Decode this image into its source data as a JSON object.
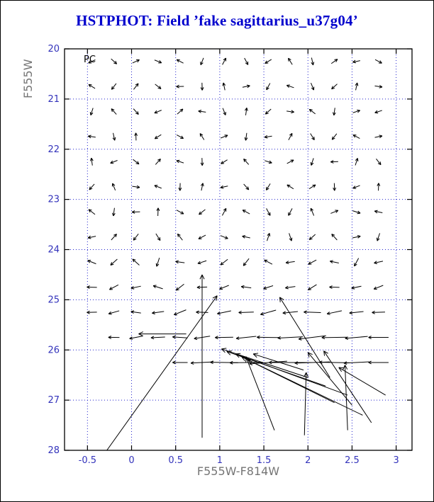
{
  "title": {
    "text": "HSTPHOT: Field ’fake sagittarius_u37g04’",
    "color": "#0000cd"
  },
  "chart_data": {
    "type": "quiver",
    "title": "HSTPHOT: Field ’fake sagittarius_u37g04’",
    "panel_label": "PC",
    "xlabel": "F555W-F814W",
    "ylabel": "F555W",
    "xlim": [
      -0.76,
      3.18
    ],
    "ylim": [
      28,
      20
    ],
    "x_tick_values": [
      -0.5,
      0,
      0.5,
      1,
      1.5,
      2,
      2.5,
      3
    ],
    "x_tick_labels": [
      "-0.5",
      "0",
      "0.5",
      "1",
      "1.5",
      "2",
      "2.5",
      "3"
    ],
    "y_tick_values": [
      20,
      21,
      22,
      23,
      24,
      25,
      26,
      27,
      28
    ],
    "y_tick_labels": [
      "20",
      "21",
      "22",
      "23",
      "24",
      "25",
      "26",
      "27",
      "28"
    ],
    "grid": true,
    "axis_color": "#000000",
    "grid_color": "#2222cc",
    "tick_label_color": "#3333bb",
    "axis_title_color": "#757575",
    "arrow_color": "#000000",
    "small_arrows": {
      "x_start": -0.45,
      "x_step": 0.25,
      "rows": [
        {
          "y": 20.25,
          "len": 0.15,
          "angles": [
            205,
            318,
            25,
            338,
            152,
            248,
            62,
            298,
            212,
            122,
            282,
            35,
            192,
            332
          ]
        },
        {
          "y": 20.75,
          "len": 0.15,
          "angles": [
            148,
            232,
            52,
            322,
            182,
            272,
            102,
            12,
            242,
            162,
            292,
            222,
            78,
            352
          ]
        },
        {
          "y": 21.25,
          "len": 0.15,
          "angles": [
            252,
            132,
            312,
            202,
            42,
            172,
            292,
            82,
            222,
            352,
            142,
            262,
            18,
            198
          ]
        },
        {
          "y": 21.75,
          "len": 0.15,
          "angles": [
            172,
            282,
            92,
            212,
            332,
            122,
            22,
            262,
            188,
            62,
            302,
            232,
            152,
            12
          ]
        },
        {
          "y": 22.25,
          "len": 0.15,
          "angles": [
            98,
            202,
            322,
            48,
            162,
            272,
            212,
            132,
            342,
            28,
            252,
            182,
            72,
            308
          ]
        },
        {
          "y": 22.75,
          "len": 0.15,
          "angles": [
            228,
            112,
            352,
            158,
            268,
            78,
            192,
            312,
            238,
            148,
            32,
            272,
            202,
            88
          ]
        },
        {
          "y": 23.25,
          "len": 0.16,
          "angles": [
            142,
            262,
            182,
            88,
            332,
            218,
            62,
            152,
            298,
            242,
            112,
            22,
            342,
            168
          ]
        },
        {
          "y": 23.75,
          "len": 0.16,
          "angles": [
            192,
            48,
            232,
            302,
            128,
            208,
            338,
            168,
            72,
            288,
            222,
            132,
            12,
            252
          ]
        },
        {
          "y": 24.25,
          "len": 0.18,
          "angles": [
            158,
            222,
            138,
            252,
            172,
            198,
            218,
            232,
            152,
            188,
            208,
            168,
            242,
            192
          ]
        },
        {
          "y": 24.75,
          "len": 0.2,
          "angles": [
            178,
            208,
            192,
            162,
            218,
            182,
            202,
            172,
            198,
            188,
            212,
            178,
            192,
            202
          ]
        },
        {
          "y": 25.25,
          "len": 0.26,
          "angles": [
            182,
            196,
            172,
            188,
            202,
            178,
            192,
            182,
            196,
            186,
            178,
            192,
            186,
            182
          ],
          "lens": [
            0.2,
            0.22,
            0.2,
            0.24,
            0.26,
            0.24,
            0.28,
            0.3,
            0.32,
            0.3,
            0.34,
            0.3,
            0.28,
            0.26
          ]
        },
        {
          "y": 25.75,
          "len": 0.35,
          "angles": [
            186,
            179,
            191,
            183,
            176,
            189,
            181,
            186,
            179,
            183,
            187,
            181,
            185,
            180
          ],
          "lens": [
            0,
            0.22,
            0.26,
            0.28,
            0.3,
            0.32,
            0.36,
            0.4,
            0.45,
            0.5,
            0.55,
            0.5,
            0.45,
            0.4
          ]
        },
        {
          "y": 26.25,
          "len": 0.5,
          "angles": [
            180,
            184,
            178,
            182,
            180,
            183,
            179,
            181,
            184,
            180,
            182,
            179,
            183,
            180
          ],
          "lens": [
            0,
            0,
            0,
            0,
            0.3,
            0.45,
            0.55,
            0.65,
            0.75,
            0.85,
            0.7,
            0.6,
            0.5,
            0.4
          ]
        }
      ]
    },
    "long_arrows": [
      [
        0.8,
        27.75,
        0.8,
        24.5
      ],
      [
        -0.28,
        28.0,
        0.97,
        24.92
      ],
      [
        0.62,
        25.68,
        0.08,
        25.68
      ],
      [
        2.0,
        26.55,
        1.02,
        25.98
      ],
      [
        2.2,
        26.72,
        1.08,
        26.03
      ],
      [
        2.45,
        26.9,
        1.18,
        26.08
      ],
      [
        2.62,
        27.3,
        1.25,
        26.14
      ],
      [
        2.3,
        27.05,
        1.32,
        26.2
      ],
      [
        1.95,
        26.4,
        1.38,
        26.08
      ],
      [
        2.25,
        26.55,
        1.68,
        24.95
      ],
      [
        2.5,
        27.1,
        2.0,
        26.05
      ],
      [
        2.88,
        26.9,
        2.35,
        26.35
      ],
      [
        2.45,
        27.6,
        2.42,
        26.3
      ],
      [
        1.62,
        27.6,
        1.3,
        26.15
      ],
      [
        2.72,
        27.45,
        2.18,
        26.02
      ],
      [
        1.96,
        27.7,
        1.98,
        26.45
      ]
    ]
  }
}
